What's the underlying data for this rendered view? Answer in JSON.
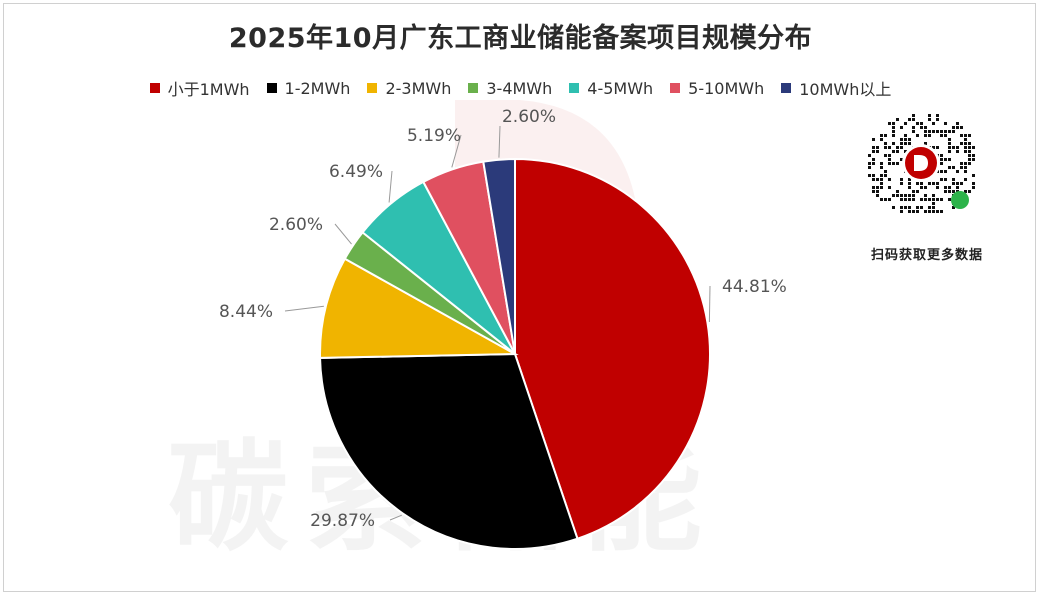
{
  "chart_data": {
    "type": "pie",
    "title": "2025年10月广东工商业储能备案项目规模分布",
    "categories": [
      "小于1MWh",
      "1-2MWh",
      "2-3MWh",
      "3-4MWh",
      "4-5MWh",
      "5-10MWh",
      "10MWh以上"
    ],
    "values": [
      44.81,
      29.87,
      8.44,
      2.6,
      6.49,
      5.19,
      2.6
    ],
    "value_labels": [
      "44.81%",
      "29.87%",
      "8.44%",
      "2.60%",
      "6.49%",
      "5.19%",
      "2.60%"
    ],
    "colors": [
      "#c00000",
      "#000000",
      "#f0b400",
      "#6ab04c",
      "#2fbfb0",
      "#e05060",
      "#2b3a7a"
    ],
    "legend_position": "top",
    "start_angle": "12 o'clock, clockwise"
  },
  "watermark": {
    "text": "碳索储能"
  },
  "qr": {
    "caption": "扫码获取更多数据"
  }
}
